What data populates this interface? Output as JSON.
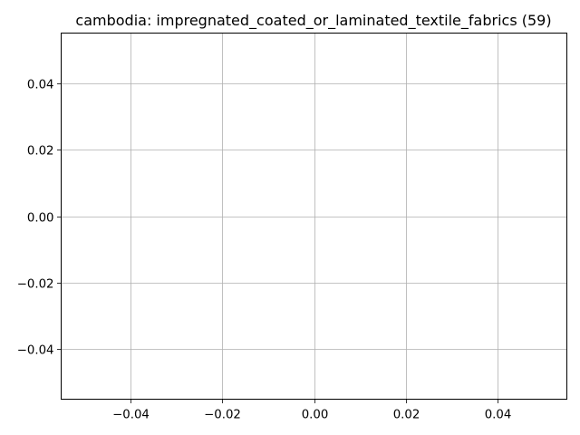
{
  "chart_data": {
    "type": "line",
    "title": "cambodia: impregnated_coated_or_laminated_textile_fabrics (59)",
    "xlabel": "",
    "ylabel": "",
    "series": [],
    "xlim": [
      -0.055,
      0.055
    ],
    "ylim": [
      -0.055,
      0.055
    ],
    "x_ticks": [
      -0.04,
      -0.02,
      0.0,
      0.02,
      0.04
    ],
    "y_ticks": [
      -0.04,
      -0.02,
      0.0,
      0.02,
      0.04
    ],
    "x_tick_labels": [
      "−0.04",
      "−0.02",
      "0.00",
      "0.02",
      "0.04"
    ],
    "y_tick_labels": [
      "−0.04",
      "−0.02",
      "0.00",
      "0.02",
      "0.04"
    ],
    "grid": true,
    "colors": {
      "grid": "#b0b0b0",
      "spine": "#000000",
      "text": "#000000",
      "background": "#ffffff"
    }
  }
}
